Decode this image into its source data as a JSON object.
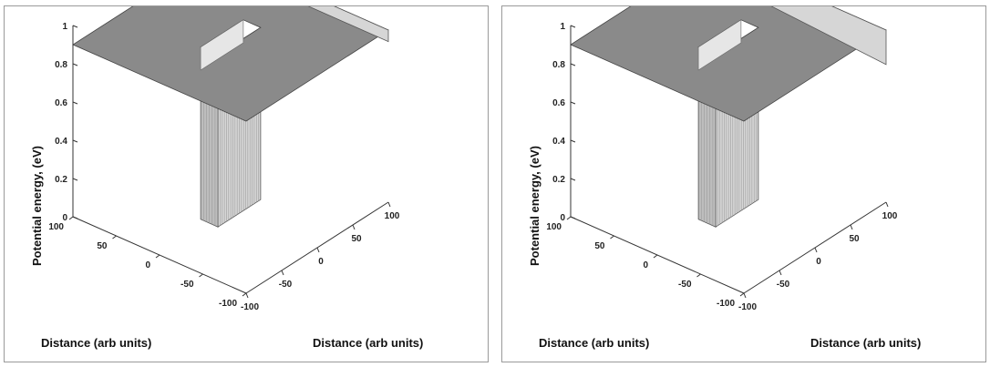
{
  "chart_data": [
    {
      "type": "surface",
      "title": "",
      "xlabel": "Distance (arb units)",
      "ylabel": "Distance (arb units)",
      "zlabel": "Potential energy, (eV)",
      "xlim": [
        -100,
        100
      ],
      "ylim": [
        -100,
        100
      ],
      "zlim": [
        0,
        1
      ],
      "x_ticks": [
        "-100",
        "-50",
        "0",
        "50",
        "100"
      ],
      "y_ticks": [
        "-100",
        "-50",
        "0",
        "50",
        "100"
      ],
      "z_ticks": [
        "0",
        "0.2",
        "0.4",
        "0.6",
        "0.8",
        "1"
      ],
      "surface": {
        "barrier_height": 0.9,
        "well_depth": 0.0,
        "well_extent_x": [
          -30,
          30
        ],
        "well_extent_y": [
          -10,
          10
        ],
        "barrier_slope_edge": "flat"
      }
    },
    {
      "type": "surface",
      "title": "",
      "xlabel": "Distance (arb units)",
      "ylabel": "Distance (arb units)",
      "zlabel": "Potential energy, (eV)",
      "xlim": [
        -100,
        100
      ],
      "ylim": [
        -100,
        100
      ],
      "zlim": [
        0,
        1
      ],
      "x_ticks": [
        "-100",
        "-50",
        "0",
        "50",
        "100"
      ],
      "y_ticks": [
        "-100",
        "-50",
        "0",
        "50",
        "100"
      ],
      "z_ticks": [
        "0",
        "0.2",
        "0.4",
        "0.6",
        "0.8",
        "1"
      ],
      "surface": {
        "barrier_height": 0.9,
        "well_depth": 0.0,
        "well_extent_x": [
          -30,
          30
        ],
        "well_extent_y": [
          -10,
          10
        ],
        "barrier_slope_edge": "sloped"
      }
    }
  ],
  "colors": {
    "surface_top": "#8a8a8a",
    "surface_side": "#d6d6d6",
    "surface_hatch": "#9a9a9a",
    "axis": "#333333"
  }
}
